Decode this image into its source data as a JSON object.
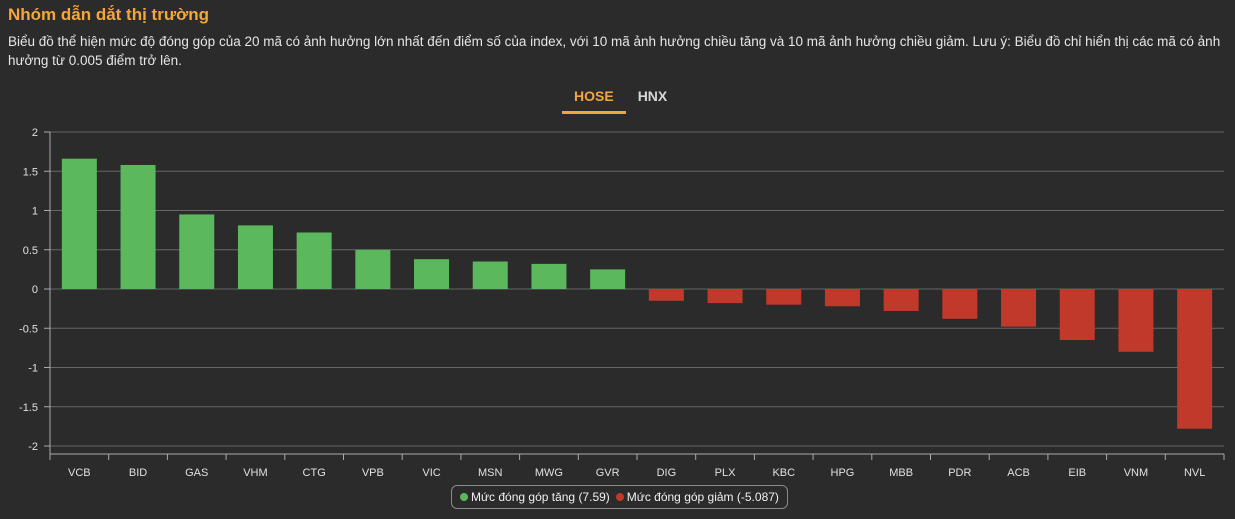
{
  "header": {
    "title": "Nhóm dẫn dắt thị trường",
    "description": "Biểu đồ thể hiện mức độ đóng góp của 20 mã có ảnh hưởng lớn nhất đến điểm số của index, với 10 mã ảnh hưởng chiều tăng và 10 mã ảnh hưởng chiều giảm. Lưu ý: Biểu đồ chỉ hiển thị các mã có ảnh hưởng từ 0.005 điểm trở lên."
  },
  "tabs": [
    {
      "label": "HOSE",
      "active": true
    },
    {
      "label": "HNX",
      "active": false
    }
  ],
  "legend": {
    "up_label": "Mức đóng góp tăng (7.59)",
    "down_label": "Mức đóng góp giảm (-5.087)"
  },
  "colors": {
    "positive": "#5cb85c",
    "negative": "#c0392b",
    "accent": "#f4a63a"
  },
  "chart_data": {
    "type": "bar",
    "categories": [
      "VCB",
      "BID",
      "GAS",
      "VHM",
      "CTG",
      "VPB",
      "VIC",
      "MSN",
      "MWG",
      "GVR",
      "DIG",
      "PLX",
      "KBC",
      "HPG",
      "MBB",
      "PDR",
      "ACB",
      "EIB",
      "VNM",
      "NVL"
    ],
    "series": [
      {
        "name": "Mức đóng góp tăng (7.59)",
        "values": [
          1.66,
          1.58,
          0.95,
          0.81,
          0.72,
          0.5,
          0.38,
          0.35,
          0.32,
          0.25,
          null,
          null,
          null,
          null,
          null,
          null,
          null,
          null,
          null,
          null
        ]
      },
      {
        "name": "Mức đóng góp giảm (-5.087)",
        "values": [
          null,
          null,
          null,
          null,
          null,
          null,
          null,
          null,
          null,
          null,
          -0.15,
          -0.18,
          -0.2,
          -0.22,
          -0.28,
          -0.38,
          -0.48,
          -0.65,
          -0.8,
          -1.78
        ]
      }
    ],
    "yticks": [
      "2",
      "1.5",
      "1",
      "0.5",
      "0",
      "-0.5",
      "-1",
      "-1.5",
      "-2"
    ],
    "ylim": [
      -2,
      2
    ],
    "grid": true,
    "legend_position": "bottom-center"
  }
}
